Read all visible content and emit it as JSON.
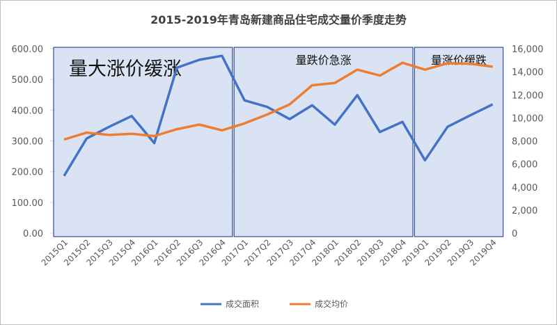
{
  "chart_data": {
    "type": "line",
    "title": "2015-2019年青岛新建商品住宅成交量价季度走势",
    "categories": [
      "2015Q1",
      "2015Q2",
      "2015Q3",
      "2015Q4",
      "2016Q1",
      "2016Q2",
      "2016Q3",
      "2016Q4",
      "2017Q1",
      "2017Q2",
      "2017Q3",
      "2017Q4",
      "2018Q1",
      "2018Q2",
      "2018Q3",
      "2018Q4",
      "2019Q1",
      "2019Q2",
      "2019Q3",
      "2019Q4"
    ],
    "series": [
      {
        "name": "成交面积",
        "axis": "left",
        "color": "#4472c4",
        "values": [
          186,
          308,
          346,
          381,
          293,
          538,
          564,
          577,
          432,
          411,
          371,
          416,
          353,
          449,
          329,
          362,
          237,
          346,
          383,
          419
        ]
      },
      {
        "name": "成交均价",
        "axis": "right",
        "color": "#ed7d31",
        "values": [
          8120,
          8720,
          8520,
          8620,
          8420,
          9020,
          9420,
          8920,
          9520,
          10290,
          11170,
          12830,
          13030,
          14180,
          13670,
          14780,
          14180,
          14740,
          14700,
          14440
        ]
      }
    ],
    "y_left": {
      "range": [
        0,
        600
      ],
      "ticks": [
        "0.00",
        "100.00",
        "200.00",
        "300.00",
        "400.00",
        "500.00",
        "600.00"
      ]
    },
    "y_right": {
      "range": [
        0,
        16000
      ],
      "ticks": [
        "0",
        "2,000",
        "4,000",
        "6,000",
        "8,000",
        "10,000",
        "12,000",
        "14,000",
        "16,000"
      ]
    },
    "grid": true,
    "legend_position": "bottom",
    "annotations": [
      {
        "label": "量大涨价缓涨",
        "from": "2015Q1",
        "to": "2016Q4"
      },
      {
        "label": "量跌价急涨",
        "from": "2017Q1",
        "to": "2018Q4"
      },
      {
        "label": "量涨价缓跌",
        "from": "2019Q1",
        "to": "2019Q4"
      }
    ],
    "annotation_fill": "#dae3f3",
    "annotation_border": "#2f4f8f"
  }
}
